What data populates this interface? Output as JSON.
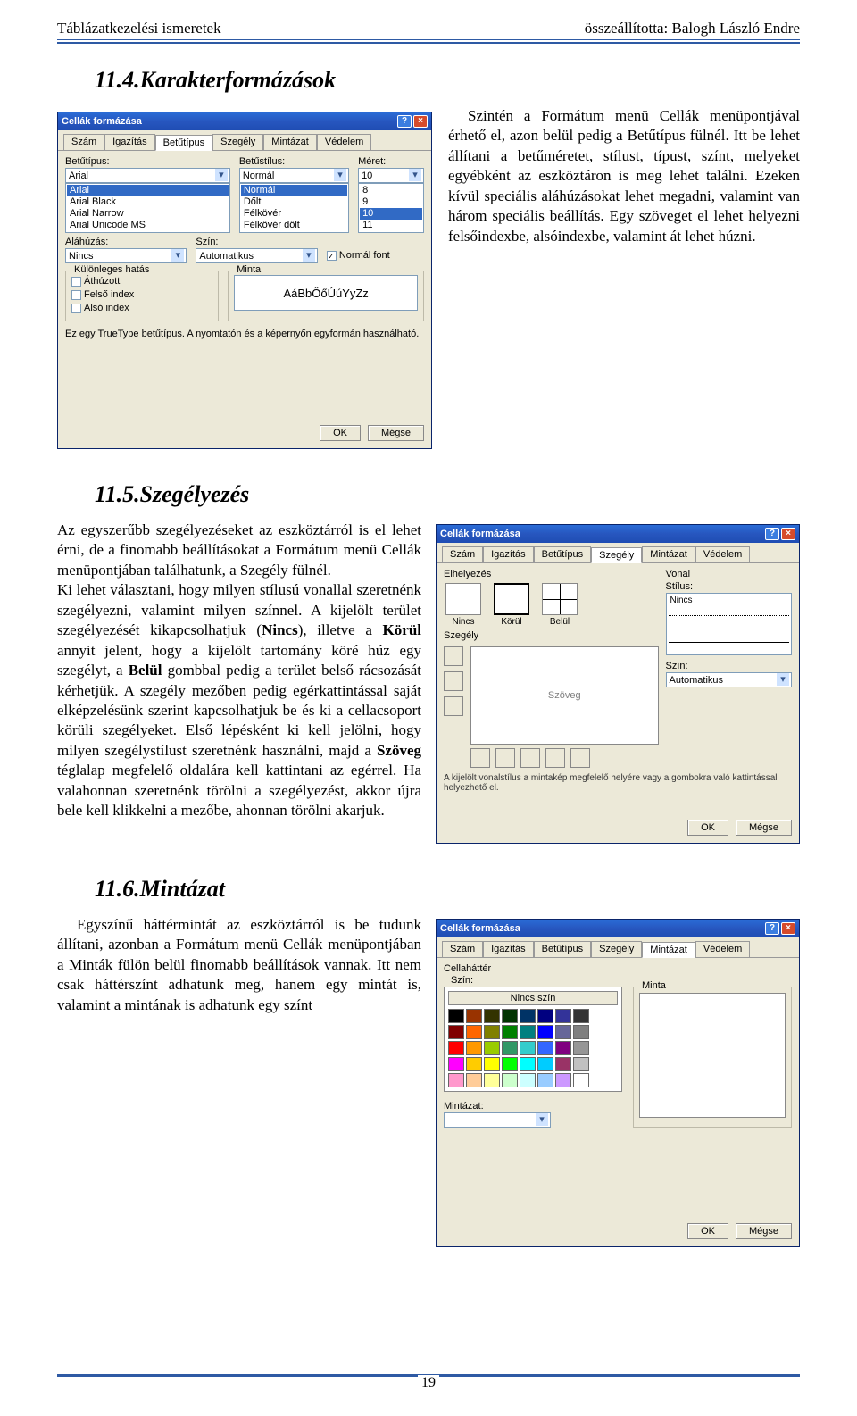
{
  "header": {
    "left": "Táblázatkezelési ismeretek",
    "right": "összeállította: Balogh László Endre"
  },
  "section1": {
    "title": "11.4.Karakterformázások",
    "para": "Szintén a Formátum menü Cellák menüpontjával érhető el, azon belül pedig a Betűtípus fülnél. Itt be lehet állítani a betűméretet, stílust, típust, színt, melyeket egyébként az eszköztáron is meg lehet találni. Ezeken kívül speciális aláhúzásokat lehet megadni, valamint van három speciális beállítás. Egy szöveget el lehet helyezni felsőindexbe, alsóindexbe, valamint át lehet húzni."
  },
  "dlg1": {
    "title": "Cellák formázása",
    "tabs": [
      "Szám",
      "Igazítás",
      "Betűtípus",
      "Szegély",
      "Mintázat",
      "Védelem"
    ],
    "activeTab": 2,
    "labels": {
      "betutipus": "Betűtípus:",
      "betustilus": "Betűstílus:",
      "meret": "Méret:",
      "alahuzas": "Aláhúzás:",
      "szin": "Szín:",
      "kulonleges": "Különleges hatás",
      "minta": "Minta",
      "athuzott": "Áthúzott",
      "felsoindex": "Felső index",
      "alsoindex": "Alsó index",
      "normalfont": "Normál font"
    },
    "font_value": "Arial",
    "font_list": [
      "Arial",
      "Arial Black",
      "Arial Narrow",
      "Arial Unicode MS"
    ],
    "style_value": "Normál",
    "style_list": [
      "Normál",
      "Dőlt",
      "Félkövér",
      "Félkövér dőlt"
    ],
    "size_value": "10",
    "size_list": [
      "8",
      "9",
      "10",
      "11"
    ],
    "alahuzas_value": "Nincs",
    "szin_value": "Automatikus",
    "preview_text": "AáBbŐőÚúYyZz",
    "hint": "Ez egy TrueType betűtípus. A nyomtatón és a képernyőn egyformán használható.",
    "ok": "OK",
    "cancel": "Mégse"
  },
  "section2": {
    "title": "11.5.Szegélyezés",
    "para1": "Az egyszerűbb szegélyezéseket az eszköztárról is el lehet érni, de a finomabb beállításokat a Formátum menü Cellák menüpontjában találhatunk, a Szegély fülnél.",
    "para2": "Ki lehet választani, hogy milyen stílusú vonallal szeretnénk szegélyezni, valamint milyen színnel. A kijelölt terület szegélyezését kikapcsolhatjuk (Nincs), illetve a Körül annyit jelent, hogy a kijelölt tartomány köré húz egy szegélyt, a Belül gombbal pedig a terület belső rácsozását kérhetjük. A szegély mezőben pedig egérkattintással saját elképzelésünk szerint kapcsolhatjuk be és ki a cellacsoport körüli szegélyeket. Első lépésként ki kell jelölni, hogy milyen szegélystílust szeretnénk használni, majd a Szöveg téglalap megfelelő oldalára kell kattintani az egérrel. Ha valahonnan szeretnénk törölni a szegélyezést, akkor újra bele kell klikkelni a mezőbe, ahonnan törölni akarjuk."
  },
  "dlg2": {
    "title": "Cellák formázása",
    "tabs": [
      "Szám",
      "Igazítás",
      "Betűtípus",
      "Szegély",
      "Mintázat",
      "Védelem"
    ],
    "activeTab": 3,
    "labels": {
      "elhelyezes": "Elhelyezés",
      "szegely": "Szegély",
      "vonal": "Vonal",
      "stilus": "Stílus:",
      "szin": "Szín:",
      "szoveg": "Szöveg"
    },
    "presets": [
      "Nincs",
      "Körül",
      "Belül"
    ],
    "stilus_value": "Nincs",
    "szin_value": "Automatikus",
    "note": "A kijelölt vonalstílus a mintakép megfelelő helyére vagy a gombokra való kattintással helyezhető el.",
    "ok": "OK",
    "cancel": "Mégse"
  },
  "section3": {
    "title": "11.6.Mintázat",
    "para": "Egyszínű háttérmintát az eszköztárról is be tudunk állítani, azonban a Formátum menü Cellák menüpontjában a Minták fülön belül finomabb beállítások vannak. Itt nem csak háttérszínt adhatunk meg, hanem egy mintát is, valamint a mintának is adhatunk egy színt"
  },
  "dlg3": {
    "title": "Cellák formázása",
    "tabs": [
      "Szám",
      "Igazítás",
      "Betűtípus",
      "Szegély",
      "Mintázat",
      "Védelem"
    ],
    "activeTab": 4,
    "labels": {
      "cellahatter": "Cellaháttér",
      "szin": "Szín:",
      "mintazat": "Mintázat:",
      "minta": "Minta"
    },
    "nincs_szin": "Nincs szín",
    "ok": "OK",
    "cancel": "Mégse",
    "palette": [
      "#000000",
      "#993300",
      "#333300",
      "#003300",
      "#003366",
      "#000080",
      "#333399",
      "#333333",
      "#800000",
      "#ff6600",
      "#808000",
      "#008000",
      "#008080",
      "#0000ff",
      "#666699",
      "#808080",
      "#ff0000",
      "#ff9900",
      "#99cc00",
      "#339966",
      "#33cccc",
      "#3366ff",
      "#800080",
      "#969696",
      "#ff00ff",
      "#ffcc00",
      "#ffff00",
      "#00ff00",
      "#00ffff",
      "#00ccff",
      "#993366",
      "#c0c0c0",
      "#ff99cc",
      "#ffcc99",
      "#ffff99",
      "#ccffcc",
      "#ccffff",
      "#99ccff",
      "#cc99ff",
      "#ffffff"
    ]
  },
  "footer": {
    "page": "19"
  }
}
